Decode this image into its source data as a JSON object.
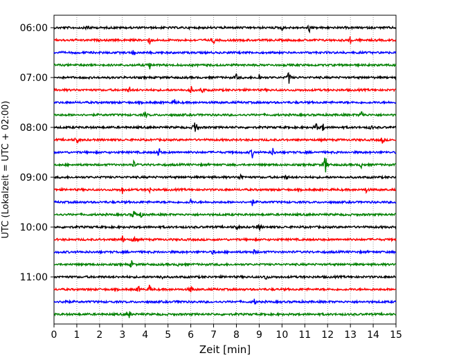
{
  "chart_data": {
    "type": "line",
    "title": "",
    "xlabel": "Zeit  [min]",
    "ylabel": "UTC (Lokalzeit = UTC + 02:00)",
    "xlim": [
      0,
      15
    ],
    "x_ticks": [
      "0",
      "1",
      "2",
      "3",
      "4",
      "5",
      "6",
      "7",
      "8",
      "9",
      "10",
      "11",
      "12",
      "13",
      "14",
      "15"
    ],
    "y_tick_labels": [
      "06:00",
      "07:00",
      "08:00",
      "09:00",
      "10:00",
      "11:00"
    ],
    "grid": "vertical dotted",
    "trace_colors": [
      "#000000",
      "#ff0000",
      "#0000ff",
      "#008000"
    ],
    "traces": [
      {
        "start": "06:00",
        "events": [
          [
            1.5,
            0.5
          ],
          [
            11.2,
            0.5
          ],
          [
            10.0,
            0.3
          ]
        ]
      },
      {
        "start": "06:15",
        "events": [
          [
            4.2,
            0.4
          ],
          [
            7.0,
            0.4
          ],
          [
            13.0,
            0.4
          ]
        ]
      },
      {
        "start": "06:30",
        "events": [
          [
            3.5,
            0.3
          ]
        ]
      },
      {
        "start": "06:45",
        "events": [
          [
            4.2,
            0.4
          ]
        ]
      },
      {
        "start": "07:00",
        "events": [
          [
            8.0,
            0.3
          ],
          [
            9.0,
            0.4
          ],
          [
            10.3,
            0.8
          ]
        ]
      },
      {
        "start": "07:15",
        "events": [
          [
            3.3,
            0.4
          ],
          [
            6.0,
            0.5
          ],
          [
            6.5,
            0.4
          ]
        ]
      },
      {
        "start": "07:30",
        "events": [
          [
            5.3,
            0.3
          ]
        ]
      },
      {
        "start": "07:45",
        "events": [
          [
            4.0,
            0.4
          ],
          [
            13.5,
            0.5
          ]
        ]
      },
      {
        "start": "08:00",
        "events": [
          [
            6.2,
            1.3
          ],
          [
            11.5,
            0.5
          ],
          [
            11.8,
            0.4
          ],
          [
            13.9,
            0.3
          ]
        ]
      },
      {
        "start": "08:15",
        "events": [
          [
            1.0,
            0.5
          ],
          [
            14.4,
            0.4
          ]
        ]
      },
      {
        "start": "08:30",
        "events": [
          [
            4.6,
            0.6
          ],
          [
            8.7,
            0.5
          ],
          [
            9.6,
            0.4
          ]
        ]
      },
      {
        "start": "08:45",
        "events": [
          [
            3.5,
            0.4
          ],
          [
            11.9,
            1.3
          ],
          [
            13.5,
            0.4
          ]
        ]
      },
      {
        "start": "09:00",
        "events": [
          [
            8.2,
            0.4
          ],
          [
            10.2,
            0.3
          ]
        ]
      },
      {
        "start": "09:15",
        "events": [
          [
            3.0,
            0.4
          ],
          [
            4.2,
            0.3
          ],
          [
            13.7,
            0.3
          ]
        ]
      },
      {
        "start": "09:30",
        "events": [
          [
            6.0,
            0.3
          ],
          [
            8.7,
            0.3
          ]
        ]
      },
      {
        "start": "09:45",
        "events": [
          [
            3.5,
            0.5
          ],
          [
            3.8,
            0.4
          ]
        ]
      },
      {
        "start": "10:00",
        "events": [
          [
            8.0,
            0.3
          ],
          [
            9.0,
            0.4
          ]
        ]
      },
      {
        "start": "10:15",
        "events": [
          [
            3.0,
            0.4
          ],
          [
            3.5,
            0.4
          ]
        ]
      },
      {
        "start": "10:30",
        "events": [
          [
            7.0,
            0.3
          ],
          [
            8.8,
            0.3
          ]
        ]
      },
      {
        "start": "10:45",
        "events": [
          [
            3.4,
            0.4
          ],
          [
            5.5,
            0.3
          ]
        ]
      },
      {
        "start": "11:00",
        "events": [
          [
            4.7,
            0.3
          ],
          [
            9.3,
            0.4
          ]
        ]
      },
      {
        "start": "11:15",
        "events": [
          [
            3.7,
            0.4
          ],
          [
            4.2,
            0.5
          ],
          [
            6.0,
            0.4
          ]
        ]
      },
      {
        "start": "11:30",
        "events": [
          [
            0.5,
            0.5
          ],
          [
            5.5,
            0.3
          ],
          [
            8.8,
            0.3
          ]
        ]
      },
      {
        "start": "11:45",
        "events": [
          [
            3.3,
            0.4
          ]
        ]
      }
    ]
  }
}
